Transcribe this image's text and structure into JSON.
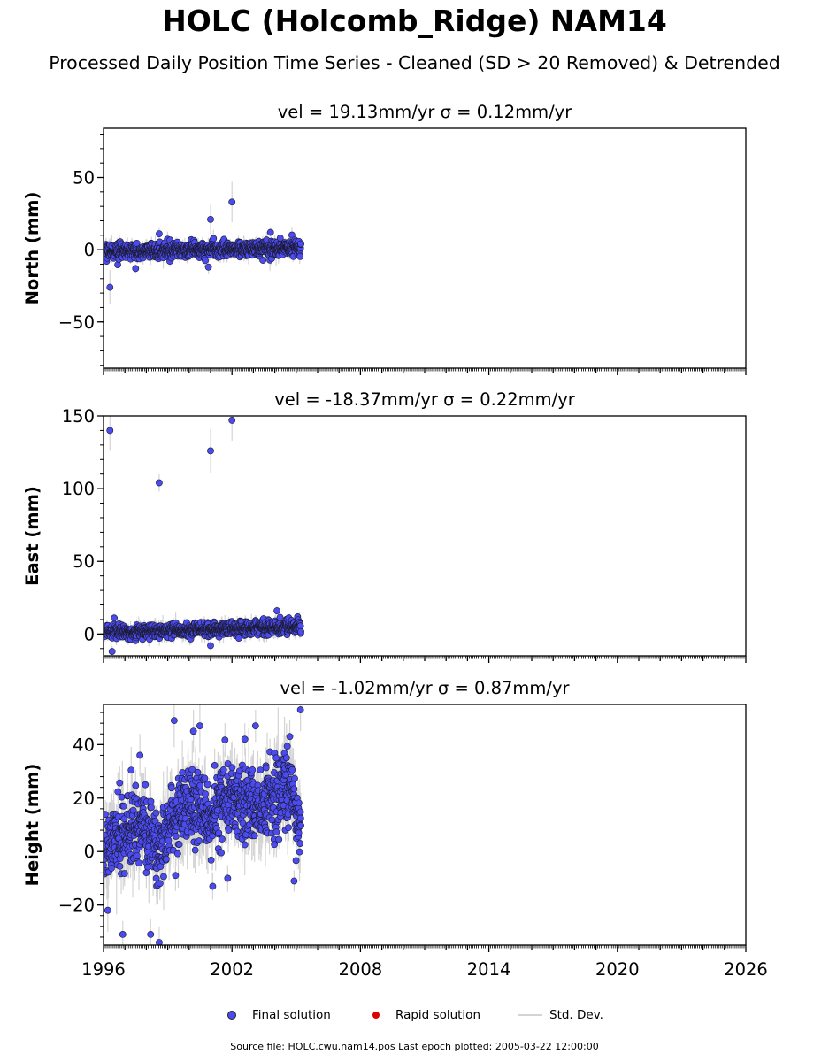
{
  "header": {
    "title": "HOLC (Holcomb_Ridge) NAM14",
    "subtitle": "Processed Daily Position Time Series - Cleaned (SD > 20 Removed) & Detrended"
  },
  "legend": {
    "final": "Final solution",
    "rapid": "Rapid solution",
    "stddev": "Std. Dev."
  },
  "footer": {
    "source": "Source file: HOLC.cwu.nam14.pos  Last epoch plotted: 2005-03-22 12:00:00"
  },
  "colors": {
    "final": "#4b4bf0",
    "rapid": "#dd0000",
    "stddev": "#d4d4d4"
  },
  "chart_data": [
    {
      "type": "scatter",
      "title": "vel = 19.13mm/yr   σ = 0.12mm/yr",
      "ylabel": "North (mm)",
      "xlim": [
        1996,
        2026
      ],
      "ylim": [
        -82,
        84
      ],
      "yticks": [
        -50,
        0,
        50
      ],
      "xticks": [
        1996,
        2002,
        2008,
        2014,
        2020,
        2026
      ],
      "x_range": [
        1996.0,
        2005.22
      ],
      "trend": [
        [
          1996.0,
          -1.5
        ],
        [
          2005.22,
          1.5
        ]
      ],
      "noise_sd": 2.6,
      "err_sd": 2.5,
      "outliers": [
        [
          1996.3,
          -26,
          12
        ],
        [
          1997.5,
          -13,
          3
        ],
        [
          1998.6,
          11,
          4
        ],
        [
          2000.9,
          -12,
          5
        ],
        [
          2001.0,
          21,
          10
        ],
        [
          2002.0,
          33,
          14
        ],
        [
          2003.8,
          12,
          3
        ]
      ],
      "series": [
        {
          "name": "Final solution"
        },
        {
          "name": "Rapid solution"
        },
        {
          "name": "Std. Dev."
        }
      ]
    },
    {
      "type": "scatter",
      "title": "vel = -18.37mm/yr   σ = 0.22mm/yr",
      "ylabel": "East (mm)",
      "xlim": [
        1996,
        2026
      ],
      "ylim": [
        -15,
        150
      ],
      "yticks": [
        0,
        50,
        100,
        150
      ],
      "xticks": [
        1996,
        2002,
        2008,
        2014,
        2020,
        2026
      ],
      "x_range": [
        1996.0,
        2005.22
      ],
      "trend": [
        [
          1996.0,
          1.0
        ],
        [
          2005.22,
          5.0
        ]
      ],
      "noise_sd": 2.2,
      "err_sd": 2.5,
      "outliers": [
        [
          1996.3,
          140,
          14
        ],
        [
          1996.4,
          -12,
          4
        ],
        [
          1996.5,
          11,
          3
        ],
        [
          1998.6,
          104,
          6
        ],
        [
          2001.0,
          126,
          15
        ],
        [
          2001.0,
          -8,
          3
        ],
        [
          2002.0,
          147,
          14
        ],
        [
          2004.1,
          16,
          3
        ]
      ],
      "series": [
        {
          "name": "Final solution"
        },
        {
          "name": "Rapid solution"
        },
        {
          "name": "Std. Dev."
        }
      ]
    },
    {
      "type": "scatter",
      "title": "vel = -1.02mm/yr   σ = 0.87mm/yr",
      "ylabel": "Height (mm)",
      "xlim": [
        1996,
        2026
      ],
      "ylim": [
        -35,
        55
      ],
      "yticks": [
        -20,
        0,
        20,
        40
      ],
      "xticks": [
        1996,
        2002,
        2008,
        2014,
        2020,
        2026
      ],
      "x_range": [
        1996.0,
        2005.22
      ],
      "trend": [
        [
          1996.0,
          2
        ],
        [
          1997.0,
          8
        ],
        [
          1997.8,
          10
        ],
        [
          1998.6,
          0
        ],
        [
          1999.2,
          12
        ],
        [
          2000.0,
          18
        ],
        [
          2001.0,
          12
        ],
        [
          2001.6,
          20
        ],
        [
          2002.5,
          20
        ],
        [
          2003.2,
          16
        ],
        [
          2004.0,
          22
        ],
        [
          2004.7,
          24
        ],
        [
          2005.22,
          8
        ]
      ],
      "noise_sd": 6.5,
      "err_sd": 6,
      "outliers": [
        [
          1996.2,
          -22,
          8
        ],
        [
          1996.9,
          -31,
          5
        ],
        [
          1997.7,
          36,
          8
        ],
        [
          1998.2,
          -31,
          6
        ],
        [
          1998.6,
          -34,
          6
        ],
        [
          1999.3,
          49,
          10
        ],
        [
          2000.2,
          45,
          8
        ],
        [
          2000.5,
          47,
          10
        ],
        [
          2001.1,
          -13,
          5
        ],
        [
          2001.8,
          -10,
          5
        ],
        [
          2002.6,
          42,
          6
        ],
        [
          2003.1,
          47,
          6
        ],
        [
          2004.7,
          43,
          6
        ],
        [
          2005.2,
          53,
          8
        ],
        [
          2004.9,
          -11,
          4
        ]
      ],
      "series": [
        {
          "name": "Final solution"
        },
        {
          "name": "Rapid solution"
        },
        {
          "name": "Std. Dev."
        }
      ]
    }
  ]
}
